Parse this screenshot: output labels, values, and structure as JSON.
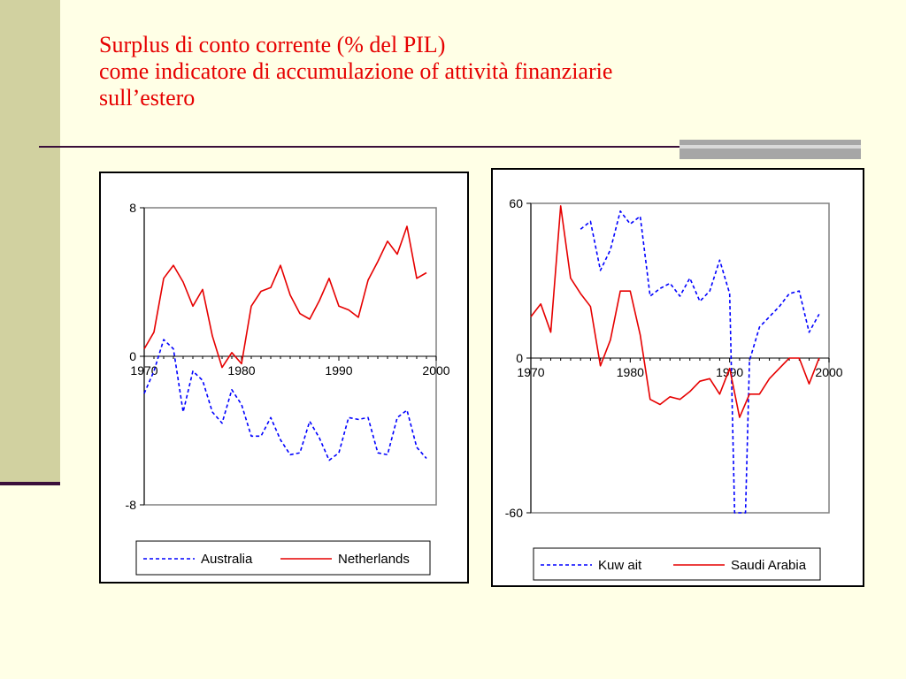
{
  "slide": {
    "title_line1": "Surplus di conto corrente (% del PIL)",
    "title_line2": "come indicatore di accumulazione of attività finanziarie",
    "title_line3": "sull’estero",
    "colors": {
      "title": "#e60000",
      "background": "#ffffe6",
      "band": "#d1d1a0",
      "rule": "#3a0f3a"
    }
  },
  "chart_data": [
    {
      "type": "line",
      "xlim": [
        1970,
        2000
      ],
      "ylim": [
        -8,
        8
      ],
      "xticks": [
        "1970",
        "1980",
        "1990",
        "2000"
      ],
      "yticks": [
        "8",
        "0",
        "-8"
      ],
      "legend_position": "bottom",
      "series": [
        {
          "name": "Australia",
          "color": "#0000ff",
          "dash": "dashed",
          "x": [
            1970,
            1971,
            1972,
            1973,
            1974,
            1975,
            1976,
            1977,
            1978,
            1979,
            1980,
            1981,
            1982,
            1983,
            1984,
            1985,
            1986,
            1987,
            1988,
            1989,
            1990,
            1991,
            1992,
            1993,
            1994,
            1995,
            1996,
            1997,
            1998,
            1999
          ],
          "y": [
            -2.0,
            -0.8,
            0.9,
            0.4,
            -3.0,
            -0.8,
            -1.3,
            -3.0,
            -3.6,
            -1.8,
            -2.6,
            -4.3,
            -4.3,
            -3.3,
            -4.5,
            -5.3,
            -5.2,
            -3.5,
            -4.4,
            -5.6,
            -5.2,
            -3.3,
            -3.4,
            -3.3,
            -5.2,
            -5.3,
            -3.3,
            -2.9,
            -4.9,
            -5.5
          ]
        },
        {
          "name": "Netherlands",
          "color": "#e60000",
          "dash": "solid",
          "x": [
            1970,
            1971,
            1972,
            1973,
            1974,
            1975,
            1976,
            1977,
            1978,
            1979,
            1980,
            1981,
            1982,
            1983,
            1984,
            1985,
            1986,
            1987,
            1988,
            1989,
            1990,
            1991,
            1992,
            1993,
            1994,
            1995,
            1996,
            1997,
            1998,
            1999
          ],
          "y": [
            0.4,
            1.3,
            4.2,
            4.9,
            4.0,
            2.7,
            3.6,
            1.1,
            -0.6,
            0.2,
            -0.4,
            2.7,
            3.5,
            3.7,
            4.9,
            3.3,
            2.3,
            2.0,
            3.0,
            4.2,
            2.7,
            2.5,
            2.1,
            4.1,
            5.1,
            6.2,
            5.5,
            7.0,
            4.2,
            4.5
          ]
        }
      ]
    },
    {
      "type": "line",
      "xlim": [
        1970,
        2000
      ],
      "ylim": [
        -60,
        60
      ],
      "xticks": [
        "1970",
        "1980",
        "1990",
        "2000"
      ],
      "yticks": [
        "60",
        "0",
        "-60"
      ],
      "legend_position": "bottom",
      "series": [
        {
          "name": "Kuw ait",
          "color": "#0000ff",
          "dash": "dashed",
          "x": [
            1975,
            1976,
            1977,
            1978,
            1979,
            1980,
            1981,
            1982,
            1983,
            1984,
            1985,
            1986,
            1987,
            1988,
            1989,
            1990,
            1990.5,
            1991,
            1991.6,
            1992,
            1993,
            1994,
            1995,
            1996,
            1997,
            1998,
            1999
          ],
          "y": [
            50,
            53,
            34,
            42,
            57,
            52,
            55,
            24,
            27,
            29,
            24,
            31,
            22,
            26,
            38,
            25,
            -60,
            -60,
            -60,
            -1,
            12,
            16,
            20,
            25,
            26,
            10,
            17
          ]
        },
        {
          "name": "Saudi Arabia",
          "color": "#e60000",
          "dash": "solid",
          "x": [
            1970,
            1971,
            1972,
            1973,
            1974,
            1975,
            1976,
            1977,
            1978,
            1979,
            1980,
            1981,
            1982,
            1983,
            1984,
            1985,
            1986,
            1987,
            1988,
            1989,
            1990,
            1991,
            1992,
            1993,
            1994,
            1995,
            1996,
            1997,
            1998,
            1999
          ],
          "y": [
            16,
            21,
            10,
            59,
            31,
            25,
            20,
            -3,
            7,
            26,
            26,
            9,
            -16,
            -18,
            -15,
            -16,
            -13,
            -9,
            -8,
            -14,
            -4,
            -23,
            -14,
            -14,
            -8,
            -4,
            0,
            0,
            -10,
            0
          ]
        }
      ]
    }
  ]
}
